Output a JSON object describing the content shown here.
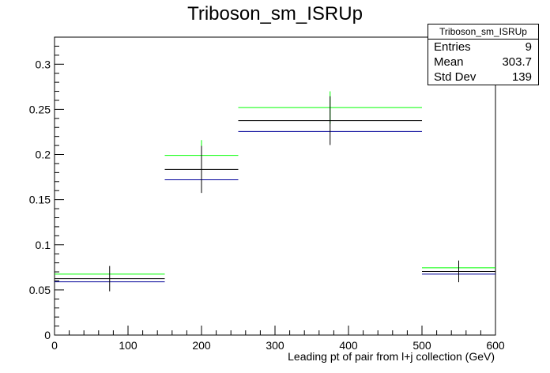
{
  "chart_data": {
    "type": "histogram",
    "title": "Triboson_sm_ISRUp",
    "xlabel": "Leading pt of pair from l+j collection (GeV)",
    "ylabel": "",
    "xlim": [
      0,
      600
    ],
    "ylim": [
      0,
      0.33
    ],
    "x_ticks": [
      0,
      100,
      200,
      300,
      400,
      500,
      600
    ],
    "y_ticks": [
      0,
      0.05,
      0.1,
      0.15,
      0.2,
      0.25,
      0.3
    ],
    "x_tick_labels": [
      "0",
      "100",
      "200",
      "300",
      "400",
      "500",
      "600"
    ],
    "y_tick_labels": [
      "0",
      "0.05",
      "0.1",
      "0.15",
      "0.2",
      "0.25",
      "0.3"
    ],
    "grid": false,
    "bin_edges": [
      0,
      150,
      250,
      500,
      600
    ],
    "series": [
      {
        "color": "#000000",
        "values": [
          0.0625,
          0.1835,
          0.2375,
          0.0705
        ],
        "errors": [
          0.014,
          0.026,
          0.027,
          0.012
        ]
      },
      {
        "color": "#00ff00",
        "values": [
          0.0675,
          0.199,
          0.252,
          0.0745
        ],
        "errors": [
          0,
          0.017,
          0.018,
          0.008
        ]
      },
      {
        "color": "#000099",
        "values": [
          0.059,
          0.172,
          0.2255,
          0.0675
        ],
        "errors": [
          0,
          0,
          0,
          0
        ]
      }
    ],
    "stats_box": {
      "title": "Triboson_sm_ISRUp",
      "rows": [
        {
          "label": "Entries",
          "value": "9"
        },
        {
          "label": "Mean",
          "value": "303.7"
        },
        {
          "label": "Std Dev",
          "value": "139"
        }
      ]
    }
  }
}
